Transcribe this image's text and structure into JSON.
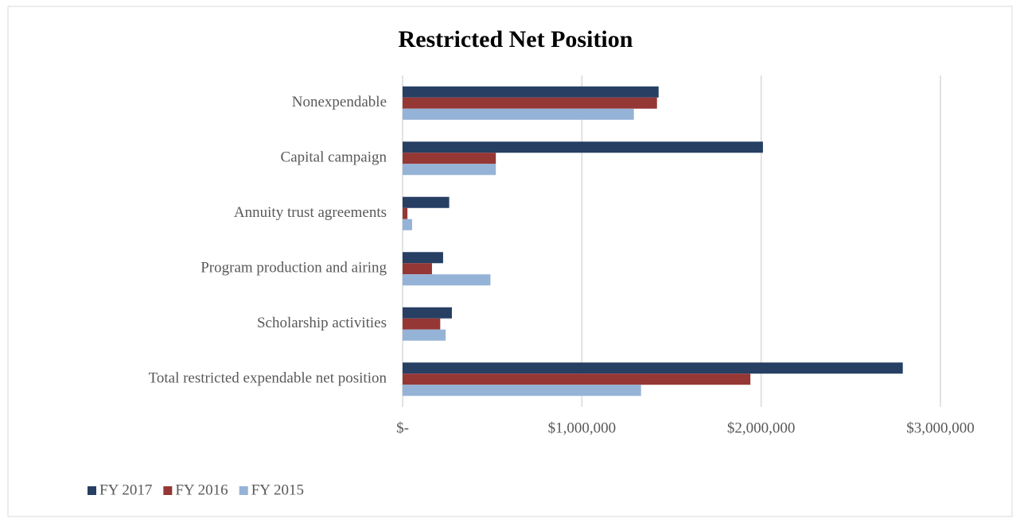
{
  "chart_data": {
    "type": "hbar",
    "title": "Restricted Net Position",
    "categories": [
      "Nonexpendable",
      "Capital campaign",
      "Annuity trust agreements",
      "Program production and airing",
      "Scholarship activities",
      "Total restricted expendable net position"
    ],
    "series": [
      {
        "name": "FY 2017",
        "color": "#263f63",
        "values": [
          1428000,
          2010000,
          260000,
          226000,
          275000,
          2790000
        ]
      },
      {
        "name": "FY 2016",
        "color": "#953735",
        "values": [
          1419000,
          520000,
          27000,
          164000,
          210000,
          1940000
        ]
      },
      {
        "name": "FY 2015",
        "color": "#95b3d7",
        "values": [
          1290000,
          520000,
          53000,
          490000,
          240000,
          1330000
        ]
      }
    ],
    "xlim": [
      0,
      3000000
    ],
    "xticks": [
      {
        "value": 0,
        "label": "$-"
      },
      {
        "value": 1000000,
        "label": "$1,000,000"
      },
      {
        "value": 2000000,
        "label": "$2,000,000"
      },
      {
        "value": 3000000,
        "label": "$3,000,000"
      }
    ],
    "grid": true,
    "legend": "bottom-left"
  }
}
